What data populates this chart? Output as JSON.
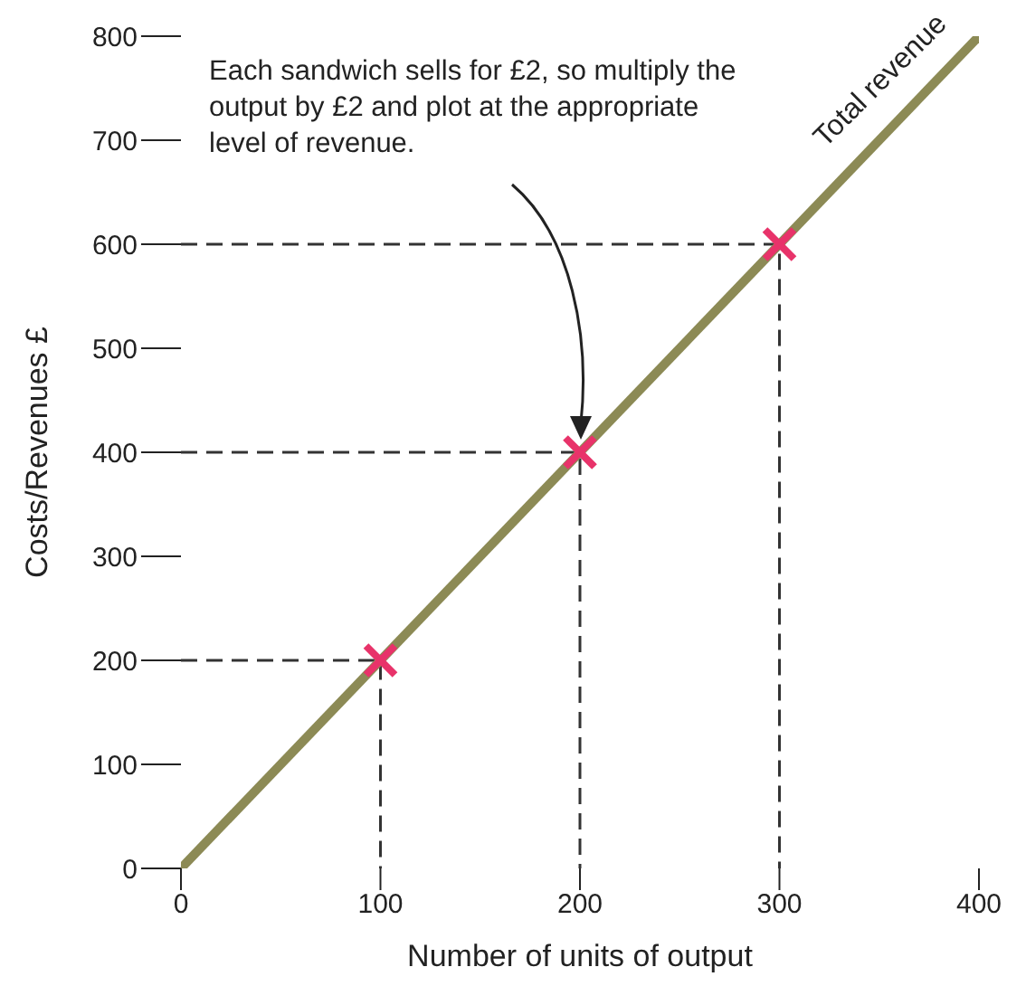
{
  "chart_data": {
    "type": "line",
    "xlabel": "Number of units of output",
    "ylabel": "Costs/Revenues £",
    "xlim": [
      0,
      400
    ],
    "ylim": [
      0,
      800
    ],
    "xticks": [
      0,
      100,
      200,
      300,
      400
    ],
    "yticks": [
      0,
      100,
      200,
      300,
      400,
      500,
      600,
      700,
      800
    ],
    "grid": false,
    "legend": false,
    "series": [
      {
        "type": "line",
        "line_style": "dashed",
        "color": "#333333",
        "x": [
          0,
          100,
          100
        ],
        "values": [
          200,
          200,
          0
        ]
      },
      {
        "type": "line",
        "line_style": "dashed",
        "color": "#333333",
        "x": [
          0,
          200,
          200
        ],
        "values": [
          400,
          400,
          0
        ]
      },
      {
        "type": "line",
        "line_style": "dashed",
        "color": "#333333",
        "x": [
          0,
          300,
          300
        ],
        "values": [
          600,
          600,
          0
        ]
      },
      {
        "name": "Total revenue",
        "line_style": "solid",
        "color": "#8c8a55",
        "x": [
          0,
          400
        ],
        "values": [
          0,
          800
        ]
      },
      {
        "type": "scatter",
        "marker": "cross",
        "color": "#e8336a",
        "x": [
          100,
          200,
          300
        ],
        "values": [
          200,
          400,
          600
        ]
      }
    ],
    "annotations": [
      "Each sandwich sells for £2, so multiply the output by £2 and plot at the appropriate level of revenue."
    ]
  }
}
